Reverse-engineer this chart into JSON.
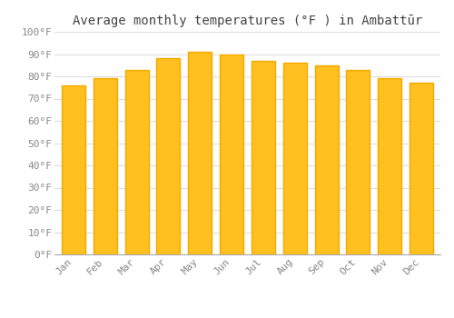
{
  "title": "Average monthly temperatures (°F ) in Ambattūr",
  "months": [
    "Jan",
    "Feb",
    "Mar",
    "Apr",
    "May",
    "Jun",
    "Jul",
    "Aug",
    "Sep",
    "Oct",
    "Nov",
    "Dec"
  ],
  "values": [
    76,
    79,
    83,
    88,
    91,
    90,
    87,
    86,
    85,
    83,
    79,
    77
  ],
  "bar_color_face": "#FFC020",
  "bar_color_edge": "#F5A800",
  "background_color": "#FFFFFF",
  "plot_bg_color": "#FFFFFF",
  "grid_color": "#DDDDDD",
  "ylim": [
    0,
    100
  ],
  "yticks": [
    0,
    10,
    20,
    30,
    40,
    50,
    60,
    70,
    80,
    90,
    100
  ],
  "ytick_labels": [
    "0°F",
    "10°F",
    "20°F",
    "30°F",
    "40°F",
    "50°F",
    "60°F",
    "70°F",
    "80°F",
    "90°F",
    "100°F"
  ],
  "title_fontsize": 10,
  "tick_fontsize": 8,
  "tick_color": "#888888",
  "font_family": "monospace",
  "bar_width": 0.75
}
